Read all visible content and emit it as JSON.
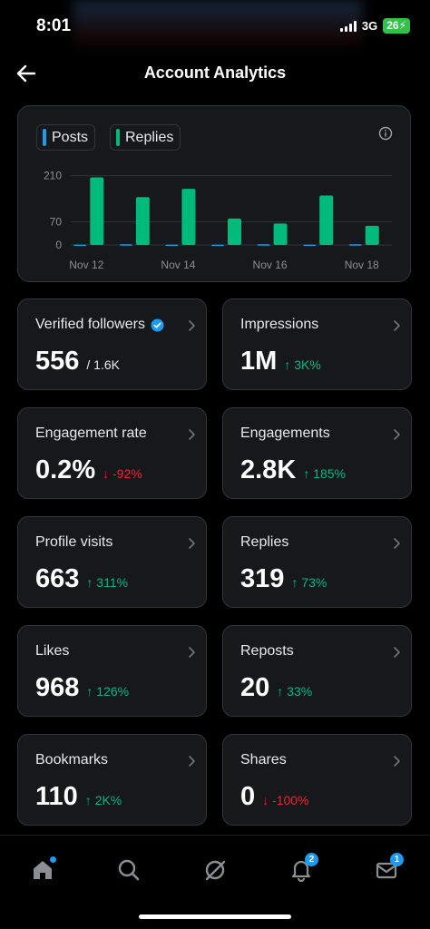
{
  "status_bar": {
    "time": "8:01",
    "network": "3G",
    "battery": "26"
  },
  "header": {
    "title": "Account Analytics"
  },
  "chart": {
    "legend": [
      {
        "label": "Posts",
        "color": "#1d9bf0"
      },
      {
        "label": "Replies",
        "color": "#00ba7c"
      }
    ]
  },
  "chart_data": {
    "type": "bar",
    "y_ticks": [
      "210",
      "70",
      "0"
    ],
    "x_tick_labels": [
      "Nov 12",
      "Nov 14",
      "Nov 16",
      "Nov 18"
    ],
    "categories": [
      "Nov 12",
      "Nov 13",
      "Nov 14",
      "Nov 15",
      "Nov 16",
      "Nov 17",
      "Nov 18"
    ],
    "ylim": [
      0,
      220
    ],
    "series": [
      {
        "name": "Posts",
        "color": "#1d9bf0",
        "values": [
          1,
          2,
          1,
          1,
          2,
          1,
          2
        ]
      },
      {
        "name": "Replies",
        "color": "#00ba7c",
        "values": [
          205,
          145,
          170,
          80,
          65,
          150,
          58
        ]
      }
    ],
    "grid": true
  },
  "metrics": [
    {
      "label": "Verified followers",
      "value": "556",
      "sub": "/ 1.6K",
      "delta": "",
      "dir": "",
      "verified": true
    },
    {
      "label": "Impressions",
      "value": "1M",
      "sub": "",
      "delta": "3K%",
      "dir": "up"
    },
    {
      "label": "Engagement rate",
      "value": "0.2%",
      "sub": "",
      "delta": "-92%",
      "dir": "down"
    },
    {
      "label": "Engagements",
      "value": "2.8K",
      "sub": "",
      "delta": "185%",
      "dir": "up"
    },
    {
      "label": "Profile visits",
      "value": "663",
      "sub": "",
      "delta": "311%",
      "dir": "up"
    },
    {
      "label": "Replies",
      "value": "319",
      "sub": "",
      "delta": "73%",
      "dir": "up"
    },
    {
      "label": "Likes",
      "value": "968",
      "sub": "",
      "delta": "126%",
      "dir": "up"
    },
    {
      "label": "Reposts",
      "value": "20",
      "sub": "",
      "delta": "33%",
      "dir": "up"
    },
    {
      "label": "Bookmarks",
      "value": "110",
      "sub": "",
      "delta": "2K%",
      "dir": "up"
    },
    {
      "label": "Shares",
      "value": "0",
      "sub": "",
      "delta": "-100%",
      "dir": "down"
    }
  ],
  "nav": {
    "items": [
      {
        "icon": "home-icon"
      },
      {
        "icon": "search-icon"
      },
      {
        "icon": "grok-icon"
      },
      {
        "icon": "bell-icon",
        "badge": "2"
      },
      {
        "icon": "mail-icon",
        "badge": "1"
      }
    ]
  },
  "colors": {
    "accent": "#1d9bf0",
    "positive": "#00ba7c",
    "negative": "#f4212e",
    "card": "#16181c",
    "border": "#333639"
  }
}
